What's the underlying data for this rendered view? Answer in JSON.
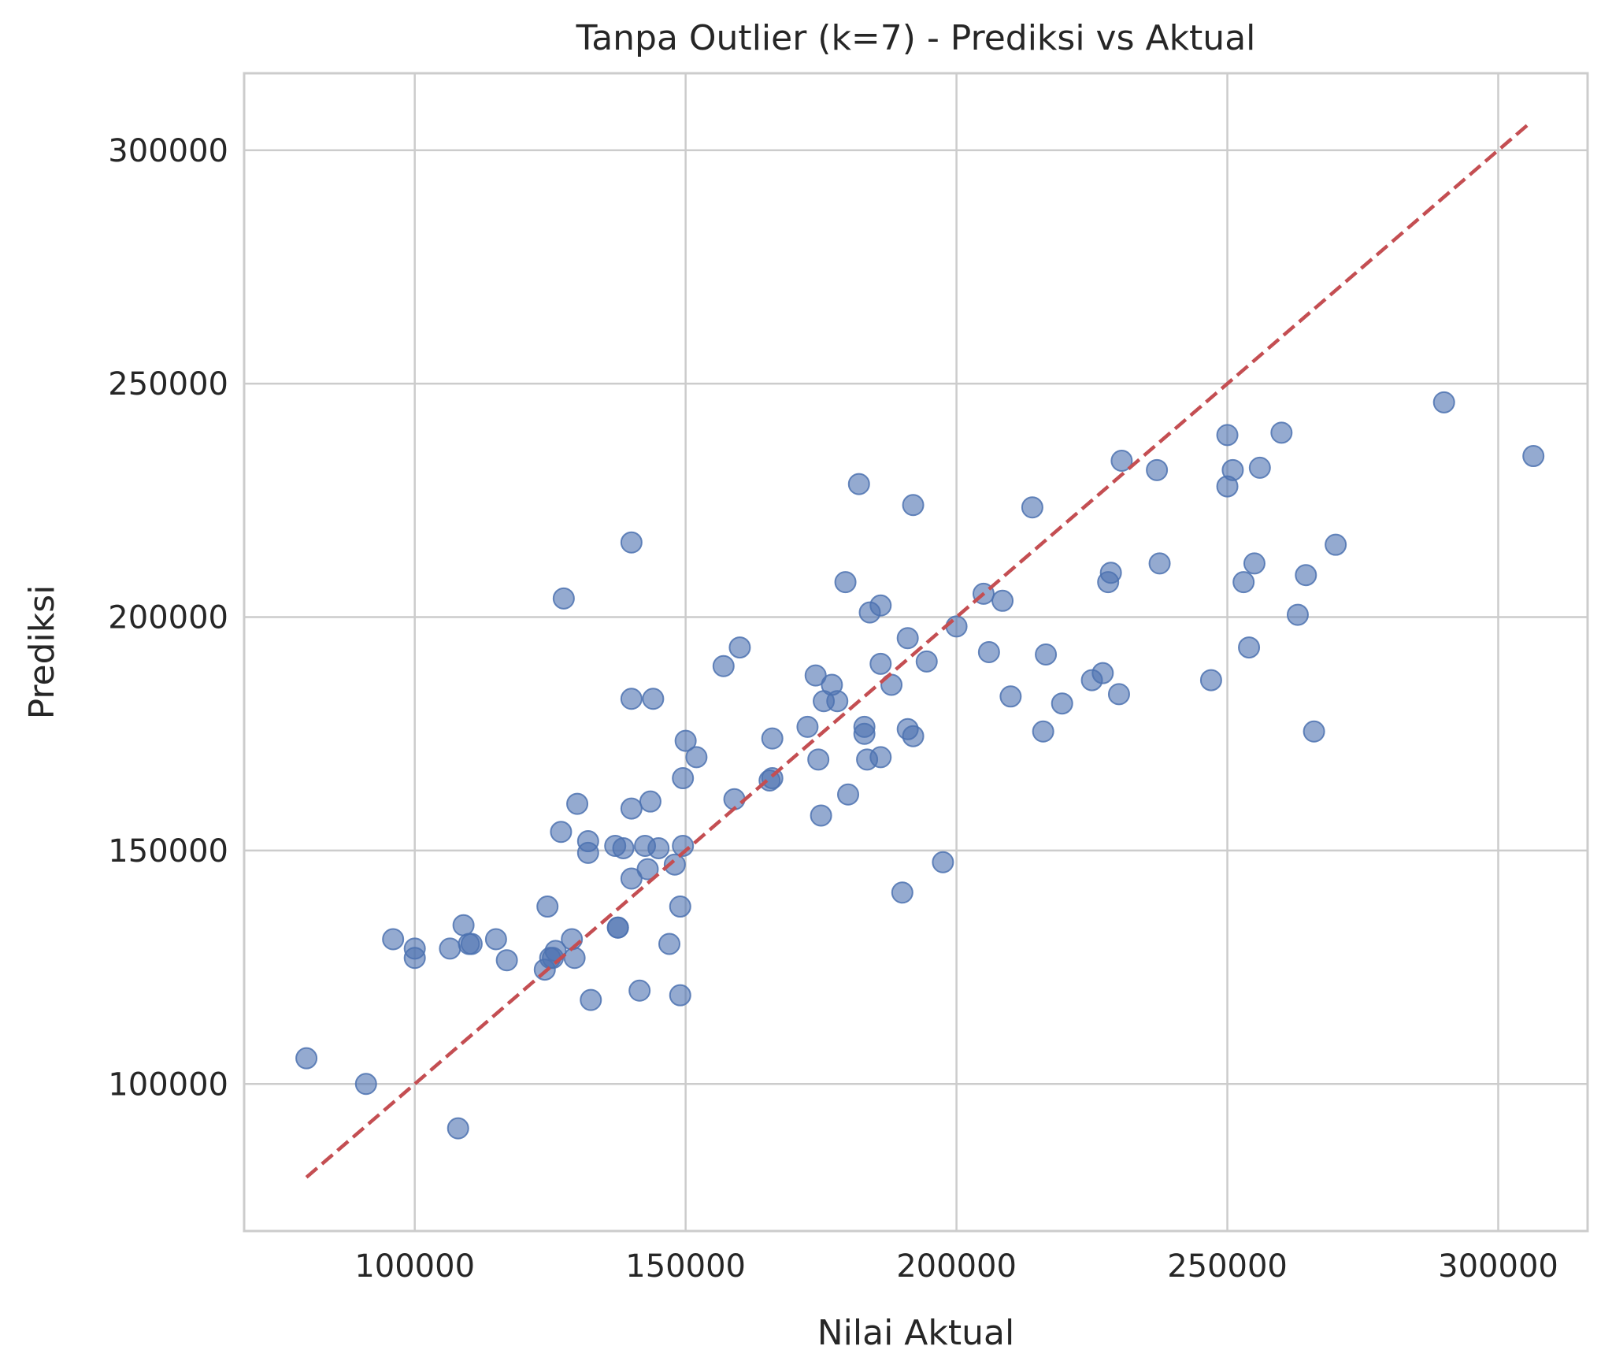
{
  "chart_data": {
    "type": "scatter",
    "title": "Tanpa Outlier (k=7) - Prediksi vs Aktual",
    "xlabel": "Nilai Aktual",
    "ylabel": "Prediksi",
    "xlim": [
      68500,
      316500
    ],
    "ylim": [
      68500,
      316500
    ],
    "xticks": [
      100000,
      150000,
      200000,
      250000,
      300000
    ],
    "yticks": [
      100000,
      150000,
      200000,
      250000,
      300000
    ],
    "xtick_labels": [
      "100000",
      "150000",
      "200000",
      "250000",
      "300000"
    ],
    "ytick_labels": [
      "100000",
      "150000",
      "200000",
      "250000",
      "300000"
    ],
    "grid": true,
    "marker_color": "#4c72b0",
    "marker_alpha": 0.6,
    "reference_line": {
      "style": "dashed",
      "color": "#c44e52",
      "from": [
        80000,
        80000
      ],
      "to": [
        306000,
        306000
      ]
    },
    "points": [
      [
        80000,
        105500
      ],
      [
        91000,
        100000
      ],
      [
        108000,
        90500
      ],
      [
        96000,
        131000
      ],
      [
        100000,
        129000
      ],
      [
        100000,
        127000
      ],
      [
        106500,
        129000
      ],
      [
        109000,
        134000
      ],
      [
        110000,
        130000
      ],
      [
        110500,
        130000
      ],
      [
        115000,
        131000
      ],
      [
        117000,
        126500
      ],
      [
        124000,
        124500
      ],
      [
        124500,
        138000
      ],
      [
        125000,
        127000
      ],
      [
        125500,
        127000
      ],
      [
        126000,
        128500
      ],
      [
        127000,
        154000
      ],
      [
        127500,
        204000
      ],
      [
        129000,
        131000
      ],
      [
        129500,
        127000
      ],
      [
        130000,
        160000
      ],
      [
        132000,
        152000
      ],
      [
        132000,
        149500
      ],
      [
        132500,
        118000
      ],
      [
        137000,
        151000
      ],
      [
        137500,
        133500
      ],
      [
        137500,
        133500
      ],
      [
        138500,
        150500
      ],
      [
        140000,
        216000
      ],
      [
        140000,
        182500
      ],
      [
        140000,
        159000
      ],
      [
        140000,
        144000
      ],
      [
        141500,
        120000
      ],
      [
        142500,
        151000
      ],
      [
        143000,
        146000
      ],
      [
        143500,
        160500
      ],
      [
        144000,
        182500
      ],
      [
        145000,
        150500
      ],
      [
        147000,
        130000
      ],
      [
        148000,
        147000
      ],
      [
        149000,
        138000
      ],
      [
        149000,
        119000
      ],
      [
        149500,
        151000
      ],
      [
        149500,
        165500
      ],
      [
        150000,
        173500
      ],
      [
        152000,
        170000
      ],
      [
        157000,
        189500
      ],
      [
        159000,
        161000
      ],
      [
        160000,
        193500
      ],
      [
        165500,
        165000
      ],
      [
        166000,
        174000
      ],
      [
        166000,
        165500
      ],
      [
        172500,
        176500
      ],
      [
        174000,
        187500
      ],
      [
        174500,
        169500
      ],
      [
        175000,
        157500
      ],
      [
        175500,
        182000
      ],
      [
        177000,
        185500
      ],
      [
        178000,
        182000
      ],
      [
        179500,
        207500
      ],
      [
        180000,
        162000
      ],
      [
        182000,
        228500
      ],
      [
        183000,
        176500
      ],
      [
        183000,
        175000
      ],
      [
        183500,
        169500
      ],
      [
        184000,
        201000
      ],
      [
        186000,
        202500
      ],
      [
        186000,
        190000
      ],
      [
        186000,
        170000
      ],
      [
        188000,
        185500
      ],
      [
        190000,
        141000
      ],
      [
        191000,
        195500
      ],
      [
        191000,
        176000
      ],
      [
        192000,
        224000
      ],
      [
        192000,
        174500
      ],
      [
        194500,
        190500
      ],
      [
        197500,
        147500
      ],
      [
        200000,
        198000
      ],
      [
        205000,
        205000
      ],
      [
        206000,
        192500
      ],
      [
        208500,
        203500
      ],
      [
        210000,
        183000
      ],
      [
        214000,
        223500
      ],
      [
        216000,
        175500
      ],
      [
        216500,
        192000
      ],
      [
        219500,
        181500
      ],
      [
        225000,
        186500
      ],
      [
        227000,
        188000
      ],
      [
        228000,
        207500
      ],
      [
        228500,
        209500
      ],
      [
        230000,
        183500
      ],
      [
        230500,
        233500
      ],
      [
        237000,
        231500
      ],
      [
        237500,
        211500
      ],
      [
        247000,
        186500
      ],
      [
        250000,
        228000
      ],
      [
        250000,
        239000
      ],
      [
        251000,
        231500
      ],
      [
        253000,
        207500
      ],
      [
        254000,
        193500
      ],
      [
        255000,
        211500
      ],
      [
        256000,
        232000
      ],
      [
        260000,
        239500
      ],
      [
        263000,
        200500
      ],
      [
        264500,
        209000
      ],
      [
        266000,
        175500
      ],
      [
        270000,
        215500
      ],
      [
        290000,
        246000
      ],
      [
        306500,
        234500
      ]
    ]
  }
}
